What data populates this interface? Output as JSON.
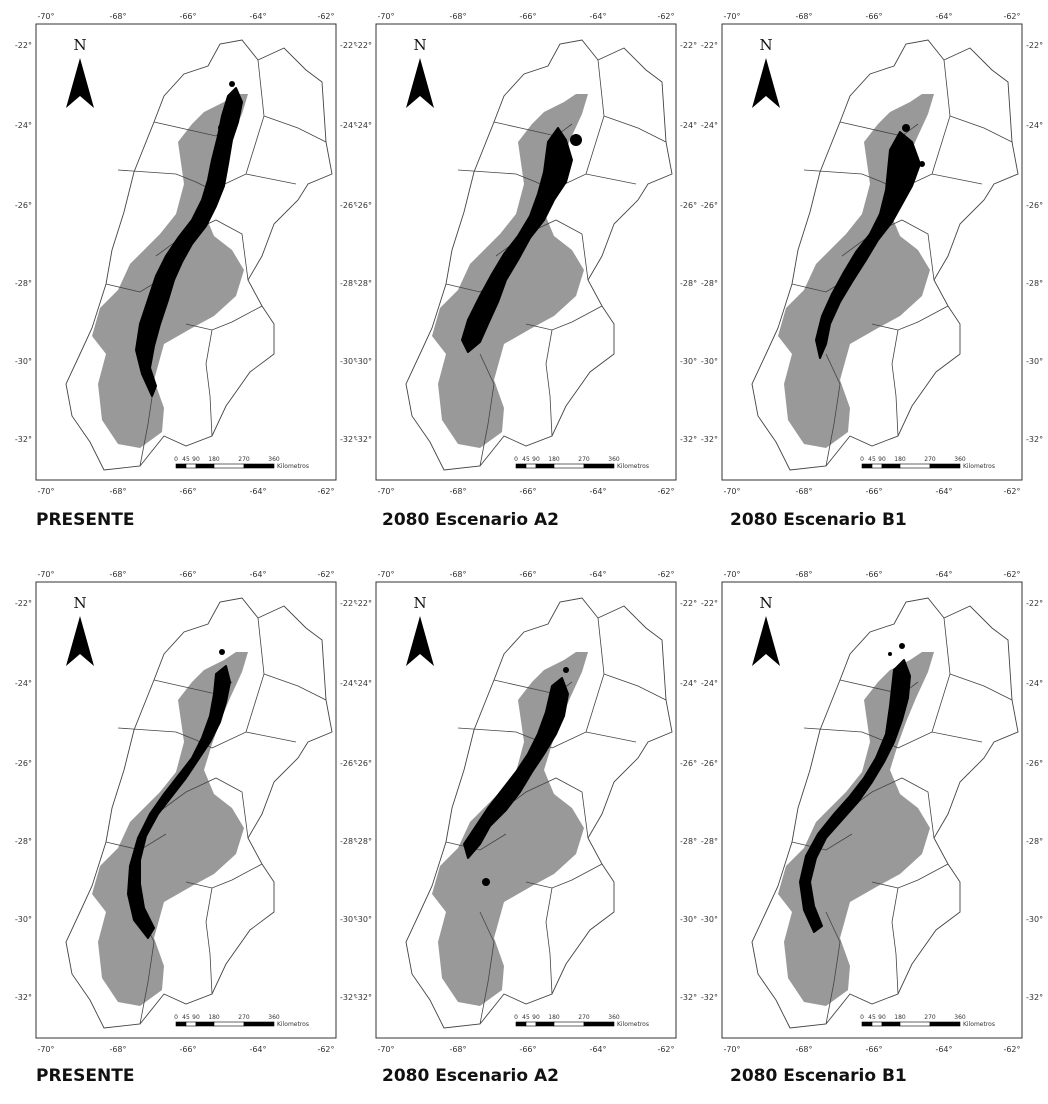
{
  "maps": [
    {
      "caption": "PRESENTE",
      "lon_ticks_top": [
        "-70°",
        "-68°",
        "-66°",
        "-64°",
        "-62°"
      ],
      "lon_ticks_bottom": [
        "-70°",
        "-68°",
        "-66°",
        "-64°",
        "-62°"
      ],
      "lat_ticks": [
        "-22°",
        "-24°",
        "-26°",
        "-28°",
        "-30°",
        "-32°"
      ],
      "scale_ticks": [
        "0",
        "45",
        "90",
        "180",
        "270",
        "360"
      ],
      "scale_unit": "Kilometros",
      "north": "N"
    },
    {
      "caption": "2080 Escenario A2",
      "lon_ticks_top": [
        "-70°",
        "-68°",
        "-66°",
        "-64°",
        "-62°"
      ],
      "lon_ticks_bottom": [
        "-70°",
        "-68°",
        "-66°",
        "-64°",
        "-62°"
      ],
      "lat_ticks": [
        "-22°",
        "-24°",
        "-26°",
        "-28°",
        "-30°",
        "-32°"
      ],
      "scale_ticks": [
        "0",
        "45",
        "90",
        "180",
        "270",
        "360"
      ],
      "scale_unit": "Kilometros",
      "north": "N"
    },
    {
      "caption": "2080 Escenario B1",
      "lon_ticks_top": [
        "-70°",
        "-68°",
        "-66°",
        "-64°",
        "-62°"
      ],
      "lon_ticks_bottom": [
        "-70°",
        "-68°",
        "-66°",
        "-64°",
        "-62°"
      ],
      "lat_ticks": [
        "-22°",
        "-24°",
        "-26°",
        "-28°",
        "-30°",
        "-32°"
      ],
      "scale_ticks": [
        "0",
        "45",
        "90",
        "180",
        "270",
        "360"
      ],
      "scale_unit": "Kilometros",
      "north": "N"
    },
    {
      "caption": "PRESENTE",
      "lon_ticks_top": [
        "-70°",
        "-68°",
        "-66°",
        "-64°",
        "-62°"
      ],
      "lon_ticks_bottom": [
        "-70°",
        "-68°",
        "-66°",
        "-64°",
        "-62°"
      ],
      "lat_ticks": [
        "-22°",
        "-24°",
        "-26°",
        "-28°",
        "-30°",
        "-32°"
      ],
      "scale_ticks": [
        "0",
        "45",
        "90",
        "180",
        "270",
        "360"
      ],
      "scale_unit": "Kilometros",
      "north": "N"
    },
    {
      "caption": "2080 Escenario A2",
      "lon_ticks_top": [
        "-70°",
        "-68°",
        "-66°",
        "-64°",
        "-62°"
      ],
      "lon_ticks_bottom": [
        "-70°",
        "-68°",
        "-66°",
        "-64°",
        "-62°"
      ],
      "lat_ticks": [
        "-22°",
        "-24°",
        "-26°",
        "-28°",
        "-30°",
        "-32°"
      ],
      "scale_ticks": [
        "0",
        "45",
        "90",
        "180",
        "270",
        "360"
      ],
      "scale_unit": "Kilometros",
      "north": "N"
    },
    {
      "caption": "2080 Escenario B1",
      "lon_ticks_top": [
        "-70°",
        "-68°",
        "-66°",
        "-64°",
        "-62°"
      ],
      "lon_ticks_bottom": [
        "-70°",
        "-68°",
        "-66°",
        "-64°",
        "-62°"
      ],
      "lat_ticks": [
        "-22°",
        "-24°",
        "-26°",
        "-28°",
        "-30°",
        "-32°"
      ],
      "scale_ticks": [
        "0",
        "45",
        "90",
        "180",
        "270",
        "360"
      ],
      "scale_unit": "Kilometros",
      "north": "N"
    }
  ],
  "colors": {
    "suitable_area": "#000000",
    "eco_region": "#999999",
    "boundary": "#444444",
    "frame": "#333333"
  }
}
